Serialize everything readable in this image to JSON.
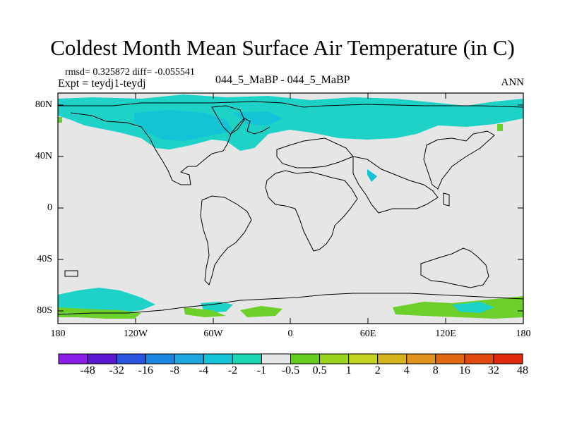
{
  "title": "Coldest Month Mean Surface Air Temperature (in C)",
  "stats": "rmsd= 0.325872 diff= -0.055541",
  "expt": "Expt = teydj1-teydj",
  "case": "044_5_MaBP - 044_5_MaBP",
  "period": "ANN",
  "lat_labels": [
    "80N",
    "40N",
    "0",
    "40S",
    "80S"
  ],
  "lon_labels": [
    "180",
    "120W",
    "60W",
    "0",
    "60E",
    "120E",
    "180"
  ],
  "colorbar": {
    "colors": [
      "#8a1ee6",
      "#5a18d2",
      "#2a55e0",
      "#1b86e0",
      "#1ea6de",
      "#14c4d8",
      "#1ad8b4",
      "#e6e6e6",
      "#66cc22",
      "#9ad41e",
      "#c4d41e",
      "#d4b41e",
      "#e0941e",
      "#e06a14",
      "#e04a10",
      "#e0280a"
    ],
    "labels": [
      "-48",
      "-32",
      "-16",
      "-8",
      "-4",
      "-2",
      "-1",
      "-0.5",
      "0.5",
      "1",
      "2",
      "4",
      "8",
      "16",
      "32",
      "48"
    ]
  },
  "colors": {
    "land_bg": "#e6e6e6",
    "cool": "#1fd2c8",
    "cool_dark": "#12c4d6",
    "warm": "#6ccf2a"
  }
}
